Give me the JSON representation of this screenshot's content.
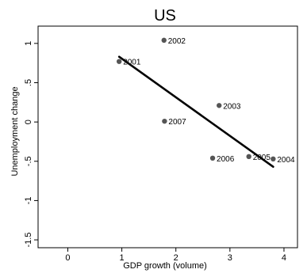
{
  "chart_data": {
    "type": "scatter",
    "title": "US",
    "xlabel": "GDP growth (volume)",
    "ylabel": "Unemployment change",
    "xlim": [
      -0.55,
      4.25
    ],
    "ylim": [
      -1.6,
      1.22
    ],
    "x_ticks": [
      0,
      1,
      2,
      3,
      4
    ],
    "x_tick_labels": [
      "0",
      "1",
      "2",
      "3",
      "4"
    ],
    "y_ticks": [
      -1.5,
      -1,
      -0.5,
      0,
      0.5,
      1
    ],
    "y_tick_labels": [
      "-1.5",
      "-1",
      "-.5",
      "0",
      ".5",
      "1"
    ],
    "grid": false,
    "point_color": "#555555",
    "line_color": "#000000",
    "points": [
      {
        "label": "2001",
        "x": 0.95,
        "y": 0.77
      },
      {
        "label": "2002",
        "x": 1.78,
        "y": 1.04
      },
      {
        "label": "2003",
        "x": 2.8,
        "y": 0.21
      },
      {
        "label": "2004",
        "x": 3.8,
        "y": -0.47
      },
      {
        "label": "2005",
        "x": 3.35,
        "y": -0.44
      },
      {
        "label": "2006",
        "x": 2.68,
        "y": -0.46
      },
      {
        "label": "2007",
        "x": 1.79,
        "y": 0.01
      }
    ],
    "fit_line": {
      "x": [
        0.95,
        3.8
      ],
      "y": [
        0.83,
        -0.57
      ]
    }
  }
}
